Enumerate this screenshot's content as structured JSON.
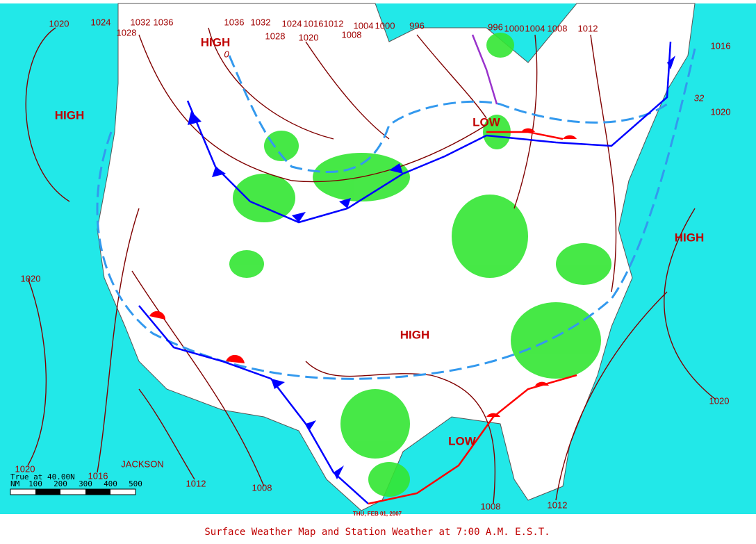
{
  "caption": "Surface Weather Map and Station Weather at 7:00 A.M. E.S.T.",
  "date": "THU, FEB 01, 2007",
  "isobar_labels": [
    "1020",
    "1024",
    "1028",
    "1032",
    "1036",
    "1036",
    "1032",
    "1028",
    "1024",
    "1020",
    "1016",
    "1012",
    "1008",
    "1004",
    "1000",
    "996",
    "996",
    "1000",
    "1004",
    "1008",
    "1012",
    "1016",
    "1020",
    "1020",
    "1020",
    "1020",
    "1016",
    "1012",
    "1008",
    "1008",
    "1012"
  ],
  "pressure_centers": [
    "HIGH",
    "HIGH",
    "HIGH",
    "HIGH",
    "LOW",
    "LOW"
  ],
  "place": "JACKSON",
  "isotherm_labels": [
    "0",
    "32"
  ],
  "scale": {
    "title": "True at 40.00N",
    "unit": "NM",
    "ticks": [
      "100",
      "200",
      "300",
      "400",
      "500"
    ]
  }
}
